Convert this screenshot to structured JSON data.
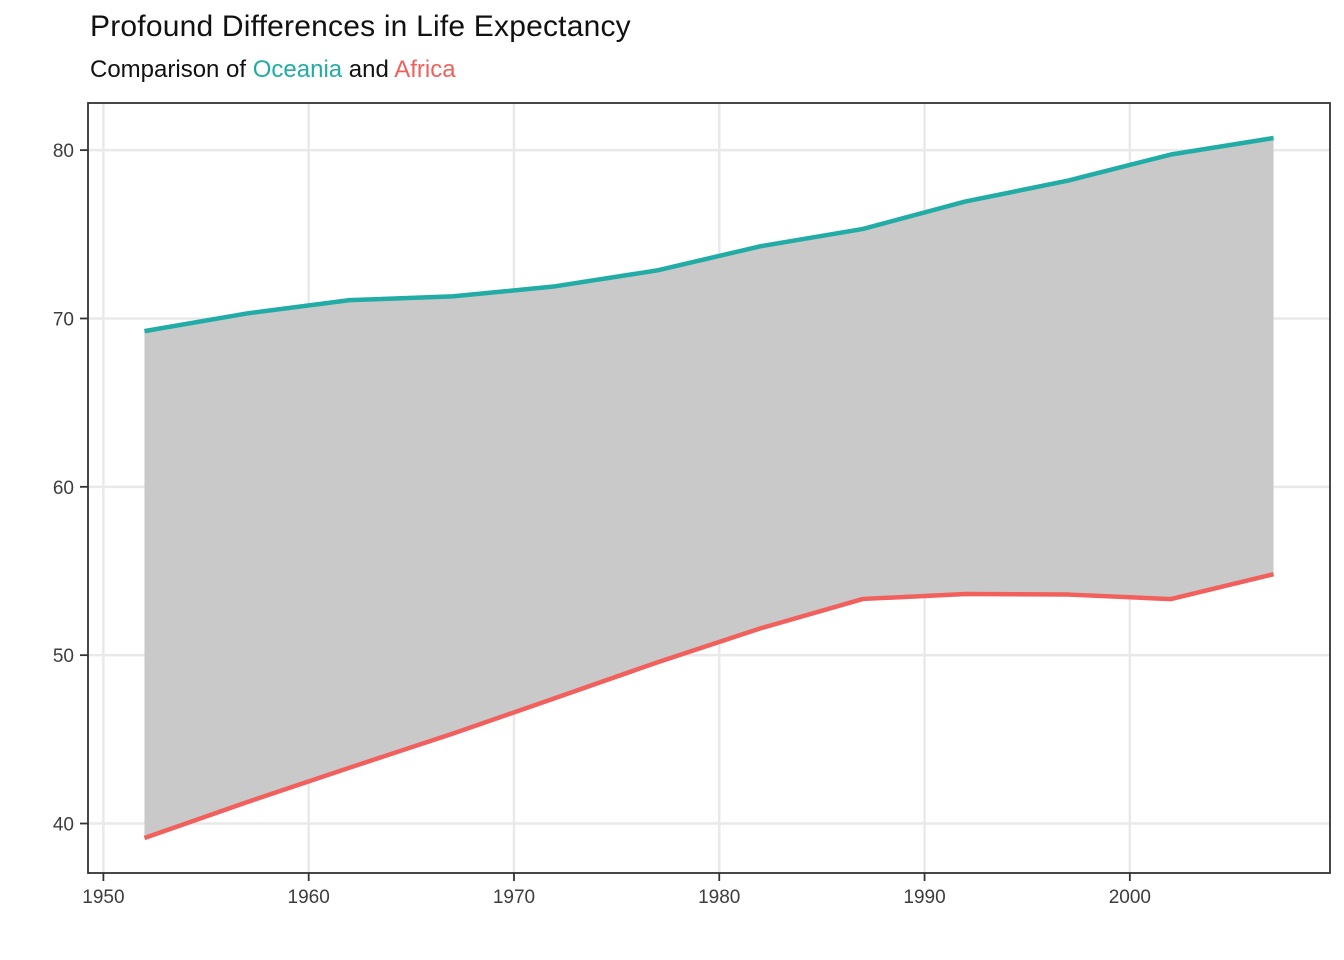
{
  "header": {
    "title": "Profound Differences in Life Expectancy",
    "subtitle": {
      "prefix": "Comparison of ",
      "series1": "Oceania",
      "middle": " and ",
      "series2": "Africa"
    }
  },
  "colors": {
    "oceania": "#21ACA6",
    "africa": "#F1605C",
    "ribbon_fill": "#C9C9C9",
    "gridline": "#E9E9E9",
    "panel_border": "#333333",
    "tick": "#333333",
    "axis_text": "#3D3D3D",
    "title_text": "#111111"
  },
  "chart_data": {
    "type": "area",
    "title": "Profound Differences in Life Expectancy",
    "subtitle": "Comparison of Oceania and Africa",
    "xlabel": "",
    "ylabel": "",
    "x": [
      1952,
      1957,
      1962,
      1967,
      1972,
      1977,
      1982,
      1987,
      1992,
      1997,
      2002,
      2007
    ],
    "series": [
      {
        "name": "Oceania",
        "color_key": "oceania",
        "values": [
          69.25,
          70.3,
          71.09,
          71.31,
          71.91,
          72.86,
          74.29,
          75.32,
          76.95,
          78.19,
          79.74,
          80.72
        ]
      },
      {
        "name": "Africa",
        "color_key": "africa",
        "values": [
          39.14,
          41.27,
          43.32,
          45.33,
          47.45,
          49.58,
          51.59,
          53.34,
          53.63,
          53.6,
          53.33,
          54.81
        ]
      }
    ],
    "ribbon": {
      "upper": "Oceania",
      "lower": "Africa",
      "fill": "#C9C9C9"
    },
    "xlim": [
      1949.25,
      2009.75
    ],
    "ylim": [
      37.06,
      82.8
    ],
    "x_ticks": [
      1950,
      1960,
      1970,
      1980,
      1990,
      2000
    ],
    "y_ticks": [
      40,
      50,
      60,
      70,
      80
    ],
    "grid": "major-only",
    "legend": "none"
  }
}
